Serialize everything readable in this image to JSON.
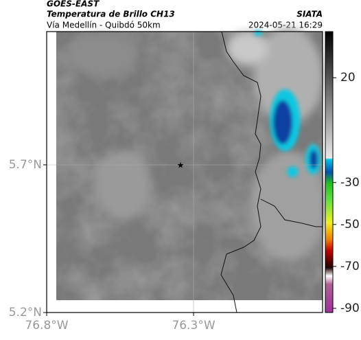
{
  "header": {
    "title": "GOES-EAST",
    "product": "Temperatura de Brillo CH13",
    "subtitle": "Vía Medellín - Quibdó 50km",
    "source": "SIATA",
    "timestamp": "2024-05-21 16:29"
  },
  "map": {
    "xlim": [
      -76.8,
      -75.861
    ],
    "ylim": [
      5.2,
      6.151
    ],
    "xticks": [
      {
        "value": -76.8,
        "label": "76.8°W"
      },
      {
        "value": -76.3,
        "label": "76.3°W"
      }
    ],
    "yticks": [
      {
        "value": 5.7,
        "label": "5.7°N"
      },
      {
        "value": 5.2,
        "label": "5.2°N"
      }
    ]
  },
  "colorbar": {
    "lim": [
      -92,
      42
    ],
    "ticks": [
      20,
      -30,
      -50,
      -70,
      -90
    ]
  }
}
